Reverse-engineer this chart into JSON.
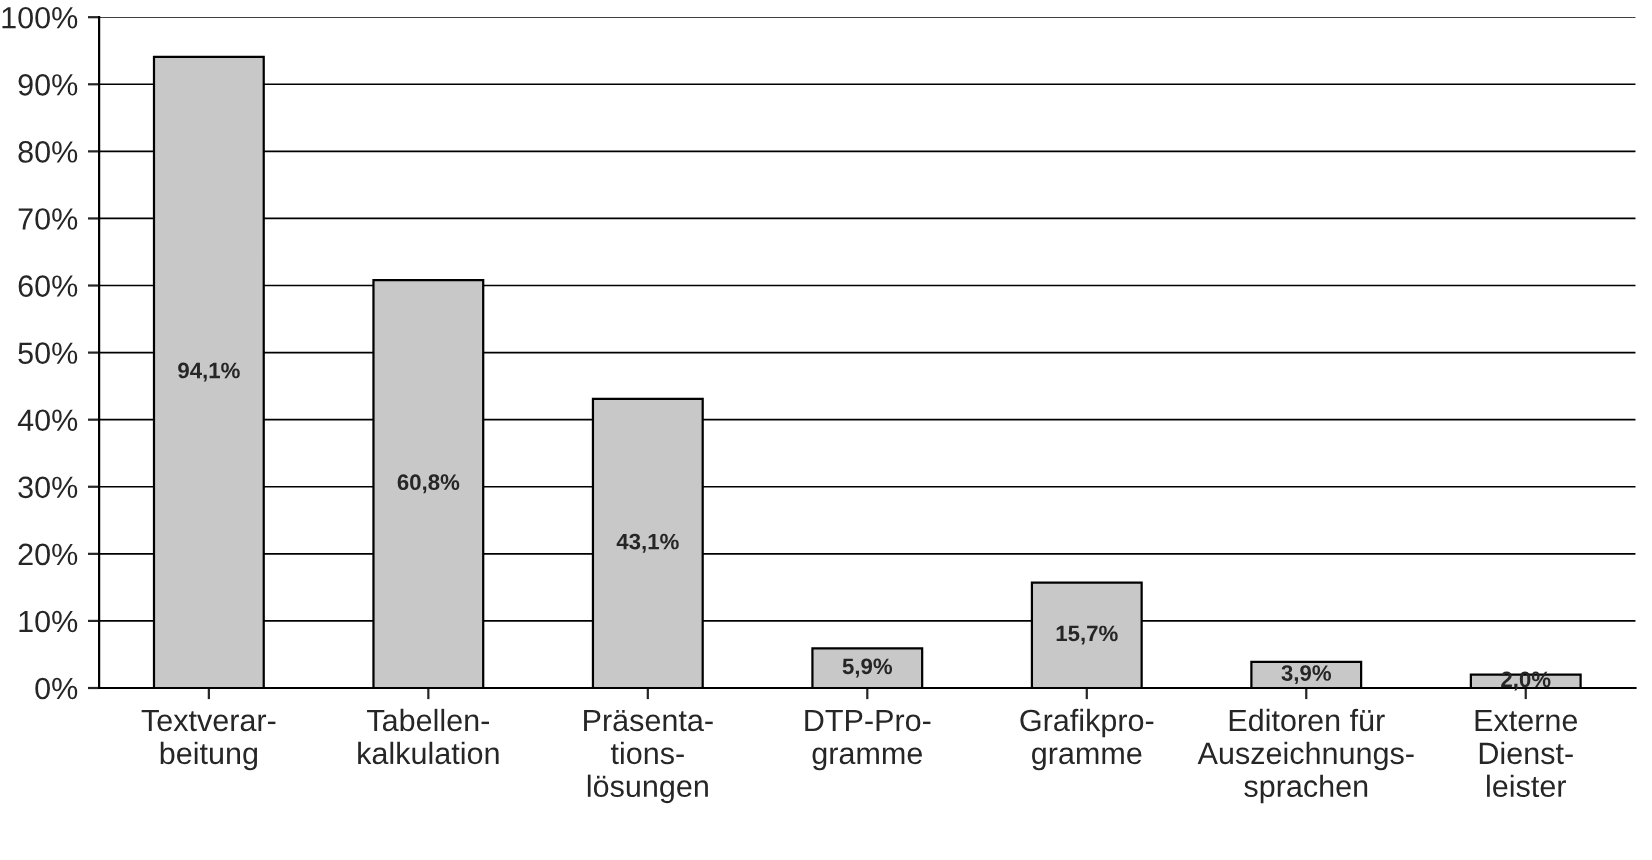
{
  "chart_data": {
    "type": "bar",
    "categories": [
      "Textverar-\nbeitung",
      "Tabellen-\nkalkulation",
      "Präsenta-\ntions-\nlösungen",
      "DTP-Pro-\ngramme",
      "Grafikpro-\ngramme",
      "Editoren für\nAuszeichnungs-\nsprachen",
      "Externe\nDienst-\nleister"
    ],
    "values": [
      94.1,
      60.8,
      43.1,
      5.9,
      15.7,
      3.9,
      2.0
    ],
    "value_labels": [
      "94,1%",
      "60,8%",
      "43,1%",
      "5,9%",
      "15,7%",
      "3,9%",
      "2,0%"
    ],
    "color": "#c8c8c8",
    "ylim": [
      0,
      100
    ],
    "yticks": [
      {
        "value": 0,
        "label": "0%"
      },
      {
        "value": 10,
        "label": "10%"
      },
      {
        "value": 20,
        "label": "20%"
      },
      {
        "value": 30,
        "label": "30%"
      },
      {
        "value": 40,
        "label": "40%"
      },
      {
        "value": 50,
        "label": "50%"
      },
      {
        "value": 60,
        "label": "60%"
      },
      {
        "value": 70,
        "label": "70%"
      },
      {
        "value": 80,
        "label": "80%"
      },
      {
        "value": 90,
        "label": "90%"
      },
      {
        "value": 100,
        "label": "100%"
      }
    ],
    "grid": "y"
  }
}
